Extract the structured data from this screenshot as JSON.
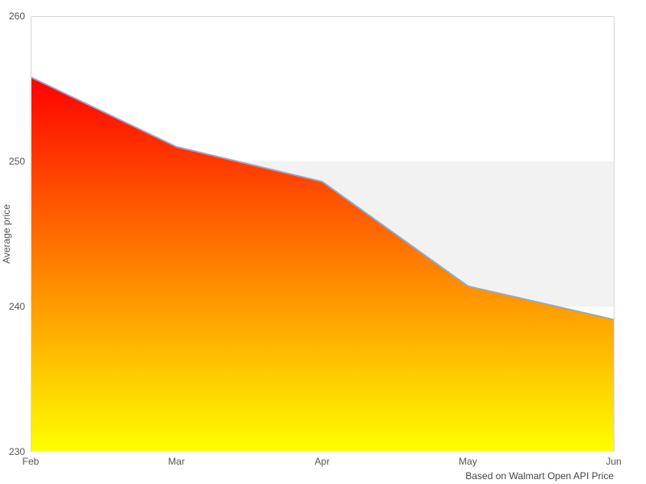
{
  "page": {
    "background": "#ffffff"
  },
  "chart_data": {
    "type": "area",
    "title": "",
    "categories": [
      "Feb",
      "Mar",
      "Apr",
      "May",
      "Jun"
    ],
    "values": [
      255.8,
      251.0,
      248.6,
      241.4,
      239.1
    ],
    "xlabel": "",
    "ylabel": "Average price",
    "ylim": [
      230,
      260
    ],
    "y_ticks": [
      230,
      240,
      250,
      260
    ],
    "grid": false,
    "legend_position": "none",
    "plot_band": {
      "from": 240,
      "to": 250,
      "color": "#f2f2f2"
    },
    "caption": "Based on Walmart Open API Price",
    "colors": {
      "line": "#85acdb",
      "gradient_top": "#ff0000",
      "gradient_bottom": "#ffff00",
      "plot_border": "#d6d6d6",
      "tick_text": "#555555",
      "caption_text": "#454545"
    }
  }
}
